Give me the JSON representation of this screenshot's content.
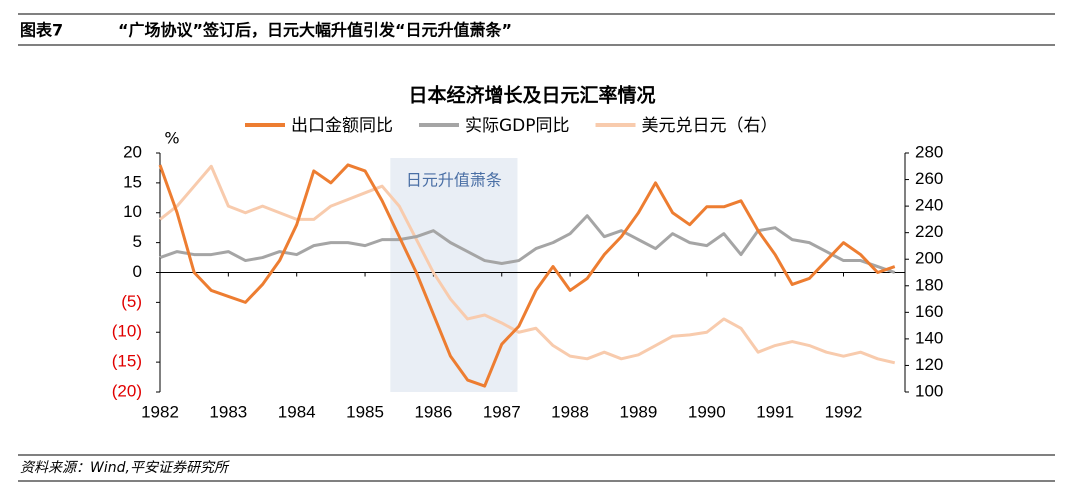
{
  "header": {
    "label": "图表7",
    "title": "“广场协议”签订后，日元大幅升值引发“日元升值萧条”"
  },
  "source": "资料来源：Wind,平安证券研究所",
  "chart_data": {
    "type": "line",
    "title": "日本经济增长及日元汇率情况",
    "y_label": "%",
    "annotation": "日元升值萧条",
    "shade": [
      1985.37,
      1987.23
    ],
    "shade_color": "#e9eef5",
    "x": [
      1982,
      1982.25,
      1982.5,
      1982.75,
      1983,
      1983.25,
      1983.5,
      1983.75,
      1984,
      1984.25,
      1984.5,
      1984.75,
      1985,
      1985.25,
      1985.5,
      1985.75,
      1986,
      1986.25,
      1986.5,
      1986.75,
      1987,
      1987.25,
      1987.5,
      1987.75,
      1988,
      1988.25,
      1988.5,
      1988.75,
      1989,
      1989.25,
      1989.5,
      1989.75,
      1990,
      1990.25,
      1990.5,
      1990.75,
      1991,
      1991.25,
      1991.5,
      1991.75,
      1992,
      1992.25,
      1992.5,
      1992.75
    ],
    "xlim": [
      1982,
      1992.9
    ],
    "xticks": [
      1982,
      1983,
      1984,
      1985,
      1986,
      1987,
      1988,
      1989,
      1990,
      1991,
      1992
    ],
    "ylim": [
      -20,
      20
    ],
    "yticks": [
      {
        "value": -20,
        "label": "(20)"
      },
      {
        "value": -15,
        "label": "(15)"
      },
      {
        "value": -10,
        "label": "(10)"
      },
      {
        "value": -5,
        "label": "(5)"
      },
      0,
      5,
      10,
      15,
      20
    ],
    "negative_tick_color": "#e00000",
    "y2lim": [
      100,
      280
    ],
    "y2ticks": [
      100,
      120,
      140,
      160,
      180,
      200,
      220,
      240,
      260,
      280
    ],
    "series": [
      {
        "name": "出口金额同比",
        "color": "#ed7d31",
        "width": 3,
        "values": [
          18,
          10,
          0,
          -3,
          -4,
          -5,
          -2,
          2,
          8,
          17,
          15,
          18,
          17,
          12,
          6,
          0,
          -7,
          -14,
          -18,
          -19,
          -12,
          -9,
          -3,
          1,
          -3,
          -1,
          3,
          6,
          10,
          15,
          10,
          8,
          11,
          11,
          12,
          7,
          3,
          -2,
          -1,
          2,
          5,
          3,
          0,
          1
        ]
      },
      {
        "name": "实际GDP同比",
        "color": "#a5a5a5",
        "width": 3,
        "values": [
          2.5,
          3.5,
          3,
          3,
          3.5,
          2,
          2.5,
          3.5,
          3,
          4.5,
          5,
          5,
          4.5,
          5.5,
          5.5,
          6,
          7,
          5,
          3.5,
          2,
          1.5,
          2,
          4,
          5,
          6.5,
          9.5,
          6,
          7,
          5.5,
          4,
          6.5,
          5,
          4.5,
          6.5,
          3,
          7,
          7.5,
          5.5,
          5,
          3.5,
          2,
          2,
          1,
          0
        ]
      },
      {
        "name": "美元兑日元（右）",
        "color": "#f8cbad",
        "width": 3,
        "axis": "y2",
        "values": [
          230,
          240,
          255,
          270,
          240,
          235,
          240,
          235,
          230,
          230,
          240,
          245,
          250,
          255,
          240,
          215,
          190,
          170,
          155,
          158,
          152,
          145,
          148,
          135,
          127,
          125,
          130,
          125,
          128,
          135,
          142,
          143,
          145,
          155,
          148,
          130,
          135,
          138,
          135,
          130,
          127,
          130,
          125,
          122
        ]
      }
    ]
  }
}
